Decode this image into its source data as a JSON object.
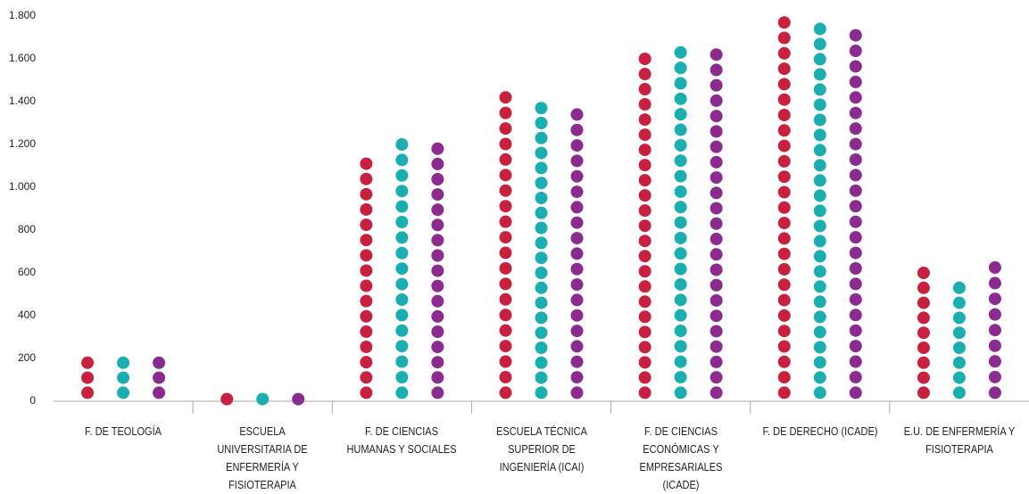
{
  "chart_data": {
    "type": "dot-column",
    "categories": [
      "F. DE TEOLOGÍA",
      "ESCUELA UNIVERSITARIA DE ENFERMERÍA Y FISIOTERAPIA",
      "F. DE CIENCIAS HUMANAS Y SOCIALES",
      "ESCUELA TÉCNICA SUPERIOR DE INGENIERÍA (ICAI)",
      "F. DE CIENCIAS ECONÓMICAS Y EMPRESARIALES (ICADE)",
      "F. DE DERECHO (ICADE)",
      "E.U. DE ENFERMERÍA Y FISIOTERAPIA"
    ],
    "series": [
      {
        "color": "#c8203f",
        "values": [
          180,
          10,
          1110,
          1420,
          1600,
          1770,
          600
        ]
      },
      {
        "color": "#1aaeb0",
        "values": [
          180,
          10,
          1200,
          1370,
          1630,
          1740,
          530
        ]
      },
      {
        "color": "#8b2a8f",
        "values": [
          180,
          10,
          1180,
          1340,
          1620,
          1710,
          625
        ]
      }
    ],
    "ylim": [
      0,
      1800
    ],
    "yticks": [
      0,
      200,
      400,
      600,
      800,
      {
        "value": 1000,
        "label": "1.000"
      },
      {
        "value": 1200,
        "label": "1.200"
      },
      {
        "value": 1400,
        "label": "1.400"
      },
      {
        "value": 1600,
        "label": "1.600"
      },
      {
        "value": 1800,
        "label": "1.800"
      }
    ],
    "grid": false
  }
}
